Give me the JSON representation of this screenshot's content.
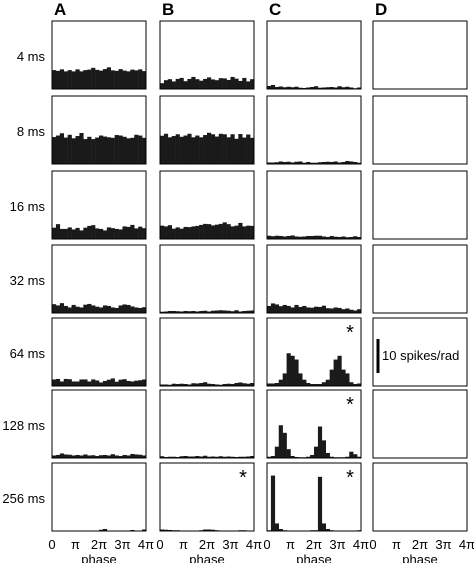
{
  "chart_data": {
    "type": "bar",
    "layout": "panel-grid",
    "columns": [
      "A",
      "B",
      "C",
      "D"
    ],
    "rows": [
      "4 ms",
      "8 ms",
      "16 ms",
      "32 ms",
      "64 ms",
      "128 ms",
      "256 ms"
    ],
    "xlabel": "phase",
    "x_ticks": [
      "0",
      "π",
      "2π",
      "3π",
      "4π"
    ],
    "xlim": [
      0,
      12.566
    ],
    "ylim": [
      0,
      27
    ],
    "bins_per_panel": 24,
    "bar_color": "#1a1a1a",
    "frame_color": "#000000",
    "scale_bar": {
      "label": "10 spikes/rad",
      "value": 10
    },
    "significance_marker": "*",
    "panels": [
      {
        "col": "A",
        "row": "4 ms",
        "star": false,
        "values": [
          7.5,
          7.2,
          7.8,
          7.0,
          7.5,
          7.0,
          7.8,
          7.0,
          7.5,
          7.7,
          8.4,
          7.6,
          7.3,
          7.9,
          8.6,
          7.4,
          7.2,
          7.9,
          7.3,
          7.0,
          7.7,
          7.4,
          7.8,
          7.1
        ]
      },
      {
        "col": "A",
        "row": "8 ms",
        "star": false,
        "values": [
          10.7,
          11.3,
          12.2,
          10.5,
          11.6,
          10.2,
          11.1,
          12.3,
          9.9,
          10.8,
          9.9,
          10.5,
          11.3,
          10.9,
          10.6,
          10.4,
          11.5,
          11.3,
          10.8,
          10.2,
          10.4,
          11.6,
          11.3,
          10.4
        ]
      },
      {
        "col": "A",
        "row": "16 ms",
        "star": false,
        "values": [
          4.5,
          5.9,
          4.0,
          4.0,
          4.6,
          3.8,
          4.4,
          3.4,
          4.5,
          5.2,
          5.5,
          4.2,
          4.0,
          3.4,
          4.6,
          4.3,
          4.0,
          3.8,
          5.0,
          4.8,
          5.6,
          4.2,
          4.9,
          4.3
        ]
      },
      {
        "col": "A",
        "row": "32 ms",
        "star": false,
        "values": [
          3.5,
          3.0,
          3.9,
          2.8,
          2.2,
          3.2,
          2.5,
          2.2,
          3.3,
          3.6,
          3.0,
          2.5,
          2.2,
          3.0,
          2.8,
          2.2,
          2.0,
          3.0,
          3.4,
          3.2,
          2.6,
          2.2,
          2.0,
          2.3
        ]
      },
      {
        "col": "A",
        "row": "64 ms",
        "star": false,
        "values": [
          2.6,
          2.8,
          1.8,
          2.8,
          2.7,
          1.8,
          1.8,
          2.6,
          2.6,
          1.8,
          2.6,
          2.2,
          1.4,
          2.0,
          2.5,
          3.0,
          1.7,
          2.5,
          2.7,
          2.0,
          1.8,
          2.1,
          2.3,
          2.6
        ]
      },
      {
        "col": "A",
        "row": "128 ms",
        "star": false,
        "values": [
          1.0,
          1.2,
          1.8,
          1.4,
          1.3,
          1.0,
          1.2,
          1.0,
          1.4,
          1.0,
          1.1,
          0.8,
          1.1,
          1.2,
          1.0,
          1.5,
          1.0,
          0.8,
          1.2,
          1.0,
          1.6,
          1.4,
          1.3,
          1.0
        ]
      },
      {
        "col": "A",
        "row": "256 ms",
        "star": false,
        "values": [
          0.0,
          0.0,
          0.0,
          0.0,
          0.0,
          0.0,
          0.0,
          0.0,
          0.0,
          0.0,
          0.0,
          0.0,
          0.5,
          0.8,
          0.0,
          0.0,
          0.0,
          0.0,
          0.0,
          0.0,
          0.4,
          0.0,
          0.0,
          0.6
        ]
      },
      {
        "col": "B",
        "row": "4 ms",
        "star": false,
        "values": [
          2.3,
          3.5,
          3.9,
          3.0,
          4.0,
          4.4,
          3.1,
          4.0,
          4.8,
          3.9,
          3.3,
          4.0,
          4.6,
          3.8,
          3.5,
          4.3,
          4.2,
          3.6,
          4.8,
          4.1,
          3.2,
          4.4,
          3.0,
          3.9
        ]
      },
      {
        "col": "B",
        "row": "8 ms",
        "star": false,
        "values": [
          11.2,
          12.0,
          10.6,
          11.1,
          11.8,
          10.8,
          11.3,
          12.0,
          10.6,
          11.3,
          10.6,
          11.5,
          12.4,
          11.8,
          10.9,
          12.0,
          11.8,
          10.6,
          11.8,
          10.0,
          11.9,
          10.5,
          11.7,
          10.4
        ]
      },
      {
        "col": "B",
        "row": "16 ms",
        "star": false,
        "values": [
          5.3,
          5.0,
          5.5,
          4.1,
          4.6,
          4.1,
          4.8,
          4.7,
          5.0,
          5.2,
          5.6,
          6.0,
          5.9,
          5.4,
          5.7,
          6.0,
          6.6,
          5.9,
          5.0,
          5.3,
          6.4,
          5.0,
          5.3,
          5.2
        ]
      },
      {
        "col": "B",
        "row": "32 ms",
        "star": false,
        "values": [
          0.5,
          0.6,
          0.8,
          0.8,
          0.7,
          0.6,
          0.8,
          0.7,
          0.8,
          0.6,
          0.8,
          0.9,
          0.6,
          0.9,
          1.0,
          1.1,
          1.0,
          0.9,
          0.7,
          1.1,
          0.6,
          0.8,
          0.9,
          1.0
        ]
      },
      {
        "col": "B",
        "row": "64 ms",
        "star": false,
        "values": [
          0.6,
          0.6,
          0.5,
          0.9,
          0.8,
          0.9,
          0.8,
          0.6,
          1.1,
          1.0,
          1.2,
          1.5,
          0.9,
          0.8,
          0.6,
          0.5,
          0.8,
          0.9,
          0.8,
          1.2,
          1.4,
          1.1,
          0.9,
          1.2
        ]
      },
      {
        "col": "B",
        "row": "128 ms",
        "star": false,
        "values": [
          0.7,
          0.4,
          0.5,
          0.5,
          0.4,
          0.7,
          0.8,
          0.6,
          0.6,
          0.8,
          0.6,
          0.9,
          0.5,
          0.6,
          0.5,
          0.7,
          0.5,
          0.6,
          0.5,
          0.4,
          0.5,
          0.5,
          0.6,
          0.8
        ]
      },
      {
        "col": "B",
        "row": "256 ms",
        "star": true,
        "values": [
          0.6,
          0.5,
          0.4,
          0.3,
          0.3,
          0.0,
          0.0,
          0.0,
          0.0,
          0.0,
          0.3,
          0.6,
          0.6,
          0.5,
          0.3,
          0.0,
          0.0,
          0.0,
          0.0,
          0.0,
          0.3,
          0.3,
          0.0,
          0.0
        ]
      },
      {
        "col": "C",
        "row": "4 ms",
        "star": false,
        "values": [
          1.2,
          1.6,
          0.8,
          1.0,
          0.7,
          0.9,
          0.7,
          0.9,
          0.5,
          0.4,
          0.6,
          0.8,
          1.1,
          0.5,
          0.6,
          0.7,
          0.8,
          0.6,
          1.1,
          0.7,
          0.9,
          0.6,
          0.3,
          0.6
        ]
      },
      {
        "col": "C",
        "row": "8 ms",
        "star": false,
        "values": [
          0.6,
          0.6,
          0.7,
          1.0,
          0.8,
          0.9,
          0.6,
          0.9,
          1.0,
          0.5,
          0.8,
          0.5,
          0.5,
          0.7,
          0.8,
          0.9,
          0.8,
          1.0,
          0.6,
          0.8,
          1.2,
          1.0,
          0.8,
          0.5
        ]
      },
      {
        "col": "C",
        "row": "16 ms",
        "star": false,
        "values": [
          1.3,
          1.1,
          1.3,
          1.2,
          1.0,
          1.2,
          1.4,
          1.0,
          0.9,
          1.0,
          1.2,
          1.2,
          1.3,
          1.3,
          1.0,
          0.8,
          1.2,
          0.9,
          0.8,
          1.0,
          0.7,
          0.8,
          1.1,
          0.8
        ]
      },
      {
        "col": "C",
        "row": "32 ms",
        "star": false,
        "values": [
          2.8,
          3.8,
          3.4,
          2.7,
          3.2,
          2.8,
          2.2,
          3.2,
          2.4,
          2.8,
          2.2,
          2.1,
          2.5,
          2.4,
          2.9,
          1.9,
          1.8,
          2.2,
          2.0,
          1.5,
          1.8,
          1.3,
          1.0,
          1.5
        ]
      },
      {
        "col": "C",
        "row": "64 ms",
        "star": true,
        "values": [
          1.0,
          1.0,
          1.2,
          2.5,
          5.0,
          13.0,
          12.0,
          10.5,
          5.0,
          2.5,
          1.2,
          0.8,
          0.8,
          0.8,
          1.5,
          2.5,
          6.5,
          10.5,
          12.0,
          6.5,
          5.0,
          1.5,
          0.8,
          1.0
        ]
      },
      {
        "col": "C",
        "row": "128 ms",
        "star": true,
        "values": [
          0.5,
          0.8,
          4.5,
          13.0,
          10.0,
          3.5,
          0.8,
          0.4,
          0.3,
          0.3,
          0.5,
          1.2,
          4.5,
          12.5,
          7.0,
          2.0,
          0.5,
          0.3,
          0.3,
          0.3,
          0.5,
          2.5,
          1.5,
          0.5
        ]
      },
      {
        "col": "C",
        "row": "256 ms",
        "star": true,
        "values": [
          0.3,
          22.0,
          3.0,
          0.8,
          0.3,
          0.0,
          0.0,
          0.0,
          0.0,
          0.0,
          0.0,
          0.3,
          0.3,
          21.5,
          3.0,
          0.8,
          0.3,
          0.0,
          0.0,
          0.0,
          0.0,
          0.0,
          0.0,
          0.3
        ]
      },
      {
        "col": "D",
        "row": "4 ms",
        "star": false,
        "values": [
          0,
          0,
          0,
          0,
          0,
          0,
          0,
          0,
          0,
          0,
          0,
          0,
          0,
          0,
          0,
          0,
          0,
          0,
          0,
          0,
          0,
          0,
          0,
          0
        ]
      },
      {
        "col": "D",
        "row": "8 ms",
        "star": false,
        "values": [
          0,
          0,
          0,
          0,
          0,
          0,
          0,
          0,
          0,
          0,
          0,
          0,
          0,
          0,
          0,
          0,
          0,
          0,
          0,
          0,
          0,
          0,
          0,
          0
        ]
      },
      {
        "col": "D",
        "row": "16 ms",
        "star": false,
        "values": [
          0,
          0,
          0,
          0,
          0,
          0,
          0,
          0,
          0,
          0,
          0,
          0,
          0,
          0,
          0,
          0,
          0,
          0,
          0,
          0,
          0,
          0,
          0,
          0
        ]
      },
      {
        "col": "D",
        "row": "32 ms",
        "star": false,
        "values": [
          0,
          0,
          0,
          0,
          0,
          0,
          0,
          0,
          0,
          0,
          0,
          0,
          0,
          0,
          0,
          0,
          0,
          0,
          0,
          0,
          0,
          0,
          0,
          0
        ]
      },
      {
        "col": "D",
        "row": "64 ms",
        "star": false,
        "values": [
          0,
          0,
          0,
          0,
          0,
          0,
          0,
          0,
          0,
          0,
          0,
          0,
          0,
          0,
          0,
          0,
          0,
          0,
          0,
          0,
          0,
          0,
          0,
          0
        ]
      },
      {
        "col": "D",
        "row": "128 ms",
        "star": false,
        "values": [
          0,
          0,
          0,
          0,
          0,
          0,
          0,
          0,
          0,
          0,
          0,
          0,
          0,
          0,
          0,
          0,
          0,
          0,
          0,
          0,
          0,
          0,
          0,
          0
        ]
      },
      {
        "col": "D",
        "row": "256 ms",
        "star": false,
        "values": [
          0,
          0,
          0,
          0,
          0,
          0,
          0,
          0,
          0,
          0,
          0,
          0,
          0,
          0,
          0,
          0,
          0,
          0,
          0,
          0,
          0,
          0,
          0,
          0
        ]
      }
    ]
  }
}
